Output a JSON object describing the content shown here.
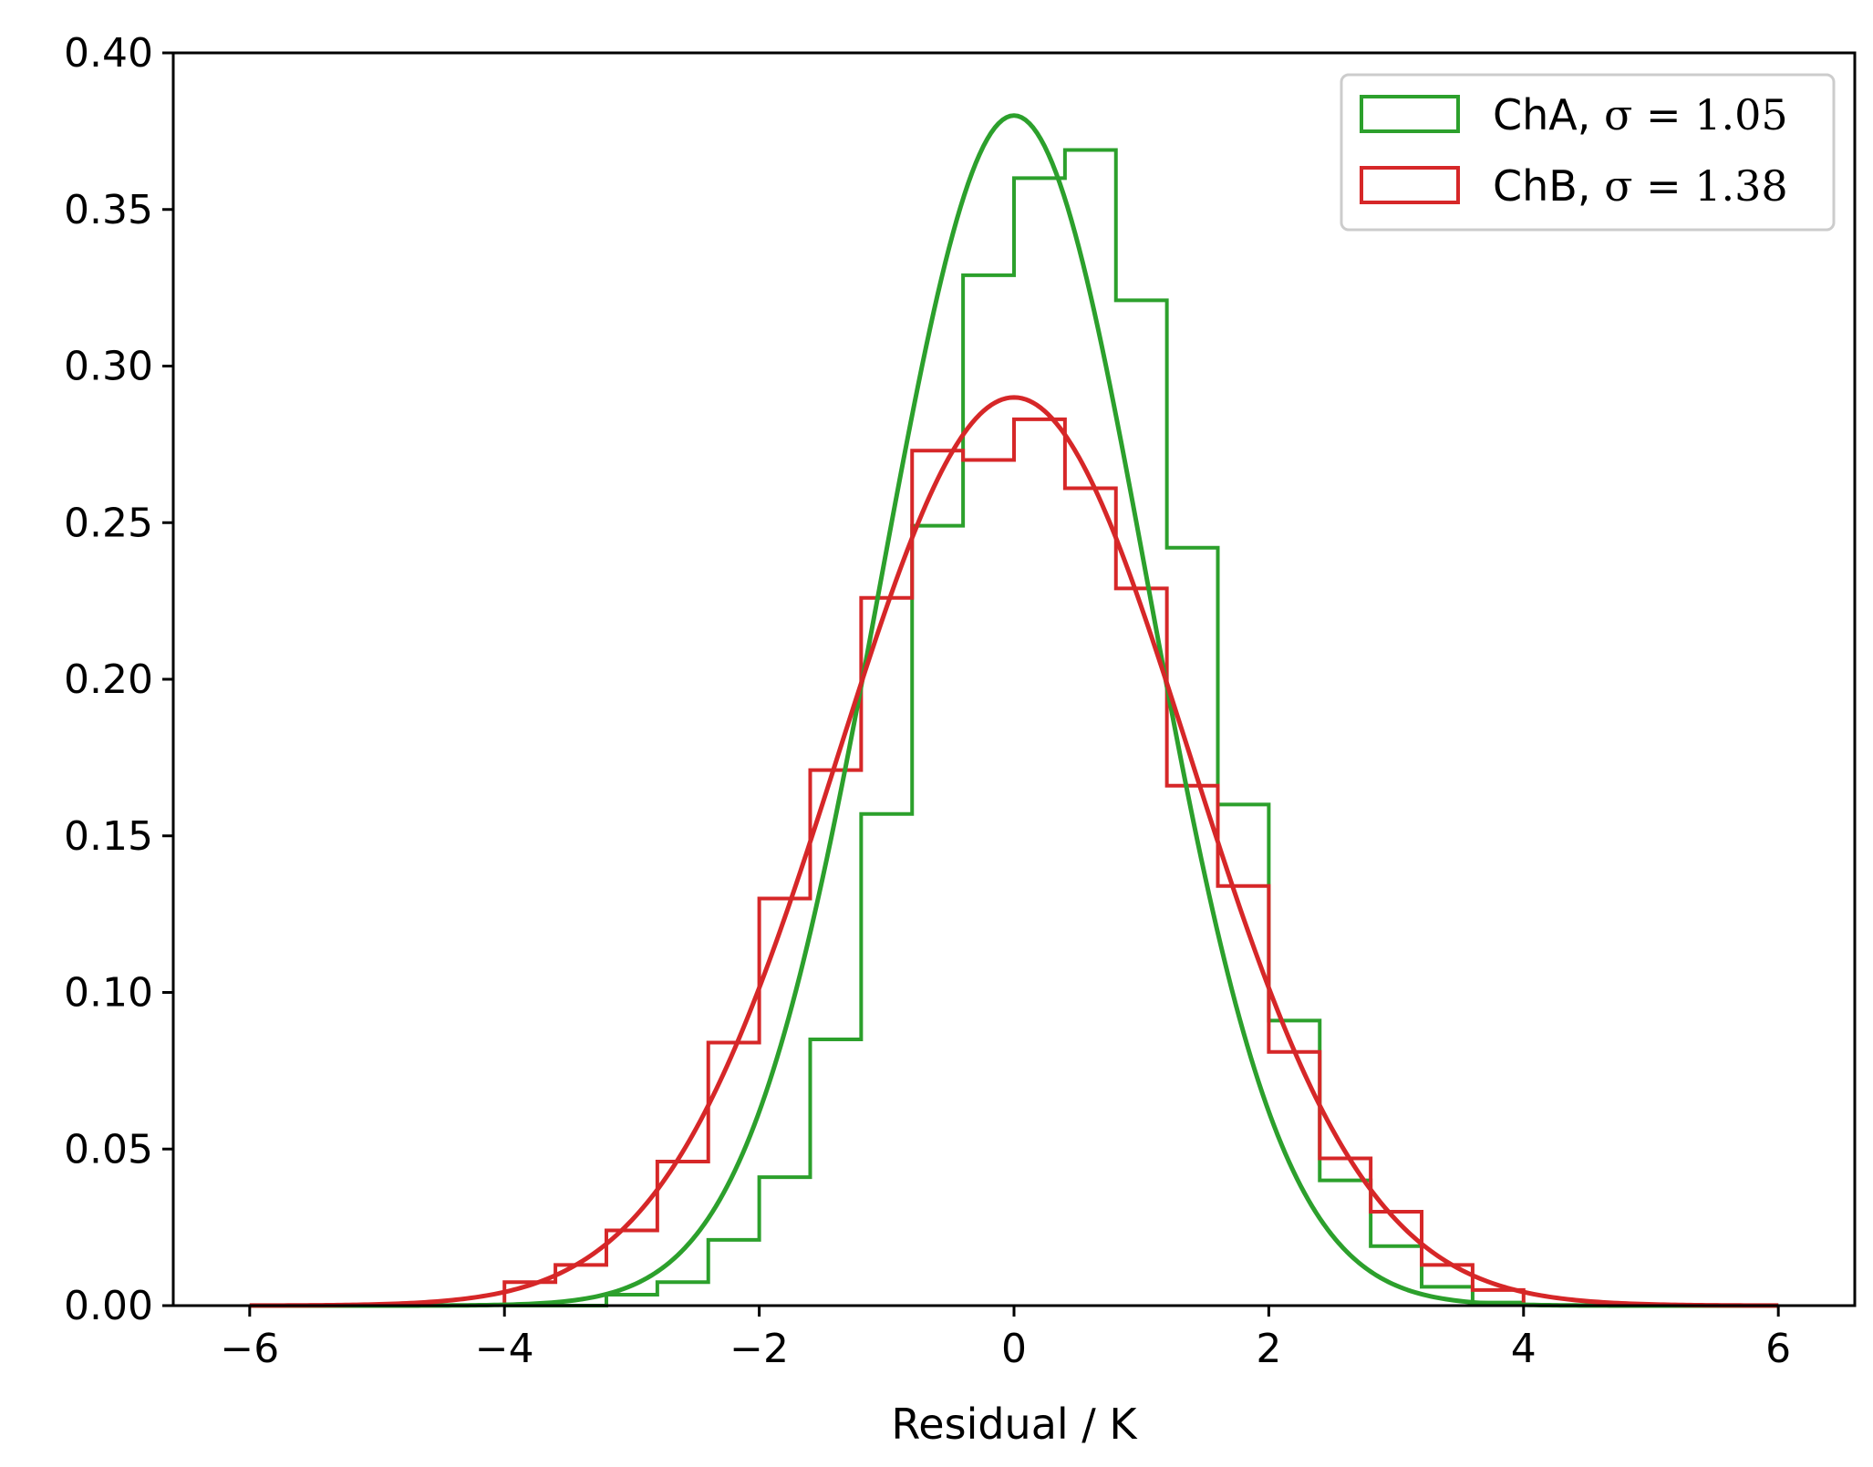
{
  "chart_data": {
    "type": "histogram",
    "title": "",
    "xlabel": "Residual / K",
    "ylabel": "",
    "xlim": [
      -6.6,
      6.6
    ],
    "ylim": [
      0,
      0.4
    ],
    "xticks": [
      -6,
      -4,
      -2,
      0,
      2,
      4,
      6
    ],
    "xtick_labels": [
      "−6",
      "−4",
      "−2",
      "0",
      "2",
      "4",
      "6"
    ],
    "yticks": [
      0.0,
      0.05,
      0.1,
      0.15,
      0.2,
      0.25,
      0.3,
      0.35,
      0.4
    ],
    "ytick_labels": [
      "0.00",
      "0.05",
      "0.10",
      "0.15",
      "0.20",
      "0.25",
      "0.30",
      "0.35",
      "0.40"
    ],
    "grid": false,
    "legend_position": "top-right",
    "bin_edges": [
      -4.0,
      -3.6,
      -3.2,
      -2.8,
      -2.4,
      -2.0,
      -1.6,
      -1.2,
      -0.8,
      -0.4,
      0.0,
      0.4,
      0.8,
      1.2,
      1.6,
      2.0,
      2.4,
      2.8,
      3.2,
      3.6,
      4.0
    ],
    "series": [
      {
        "name": "ChA",
        "legend_label": "ChA, ",
        "legend_sigma": "σ = 1.05",
        "sigma": 1.05,
        "mean": 0.0,
        "color": "#2ca02c",
        "hist_values": [
          0.0,
          0.0,
          0.0035,
          0.0075,
          0.021,
          0.041,
          0.085,
          0.157,
          0.249,
          0.329,
          0.36,
          0.369,
          0.321,
          0.242,
          0.16,
          0.091,
          0.04,
          0.019,
          0.006,
          0.001
        ],
        "curve_x_range": [
          -6,
          6
        ],
        "curve_peak": 0.38
      },
      {
        "name": "ChB",
        "legend_label": "ChB, ",
        "legend_sigma": "σ = 1.38",
        "sigma": 1.38,
        "mean": 0.0,
        "color": "#d62728",
        "hist_values": [
          0.0075,
          0.013,
          0.024,
          0.046,
          0.084,
          0.13,
          0.171,
          0.226,
          0.273,
          0.27,
          0.283,
          0.261,
          0.229,
          0.166,
          0.134,
          0.081,
          0.047,
          0.03,
          0.013,
          0.005
        ],
        "curve_x_range": [
          -6,
          6
        ],
        "curve_peak": 0.29
      }
    ]
  }
}
